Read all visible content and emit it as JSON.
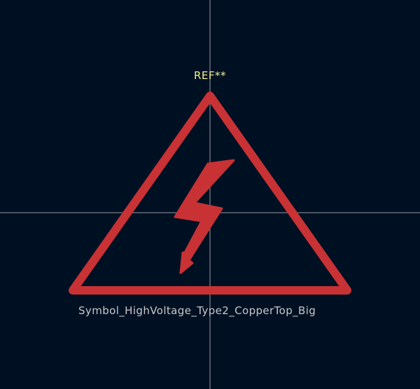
{
  "footprint": {
    "reference": "REF**",
    "value": "Symbol_HighVoltage_Type2_CopperTop_Big"
  },
  "colors": {
    "background": "#001023",
    "symbol": "#C83234",
    "reference_text": "#F2F08A",
    "value_text": "#C8C8C8",
    "crosshair": "#C8C8C8"
  },
  "icons": {
    "symbol": "high-voltage-warning-icon"
  }
}
